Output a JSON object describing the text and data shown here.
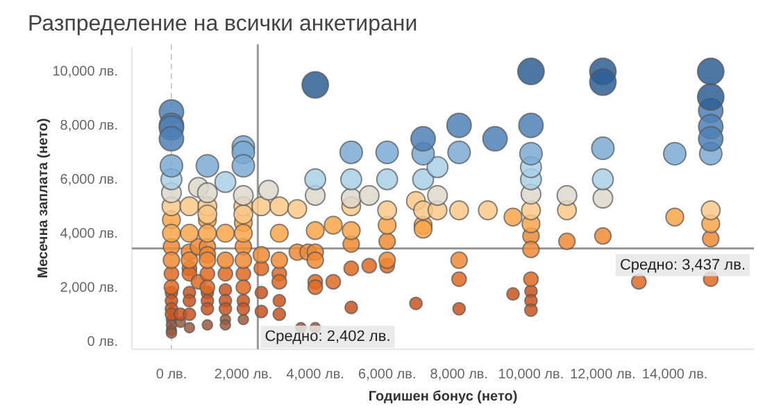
{
  "chart_data": {
    "type": "bubble",
    "title": "Разпределение на всички анкетирани",
    "xlabel": "Годишен бонус (нето)",
    "ylabel": "Месечна заплата (нето)",
    "xlim": [
      -1100,
      16200
    ],
    "ylim": [
      -300,
      10900
    ],
    "xticks": [
      {
        "value": 0,
        "label": "0 лв."
      },
      {
        "value": 2000,
        "label": "2,000 лв."
      },
      {
        "value": 4000,
        "label": "4,000 лв."
      },
      {
        "value": 6000,
        "label": "6,000 лв."
      },
      {
        "value": 8000,
        "label": "8,000 лв."
      },
      {
        "value": 10000,
        "label": "10,000 лв."
      },
      {
        "value": 12000,
        "label": "12,000 лв."
      },
      {
        "value": 14000,
        "label": "14,000 лв."
      }
    ],
    "yticks": [
      {
        "value": 0,
        "label": "0 лв."
      },
      {
        "value": 2000,
        "label": "2,000 лв."
      },
      {
        "value": 4000,
        "label": "4,000 лв."
      },
      {
        "value": 6000,
        "label": "6,000 лв."
      },
      {
        "value": 8000,
        "label": "8,000 лв."
      },
      {
        "value": 10000,
        "label": "10,000 лв."
      }
    ],
    "ref_lines": [
      {
        "axis": "x",
        "value": 0,
        "color": "#cccccc",
        "line_style": "dashed"
      },
      {
        "axis": "x",
        "value": 2402,
        "label": "Средно: 2,402 лв.",
        "color": "#999999",
        "line_style": "solid"
      },
      {
        "axis": "y",
        "value": 3437,
        "label": "Средно: 3,437 лв.",
        "color": "#999999",
        "line_style": "solid"
      }
    ],
    "series": [
      {
        "color": "#9c5a3c",
        "x": [
          0,
          0,
          0,
          0,
          250,
          500,
          1000,
          1500,
          1500,
          2000,
          3600,
          4000
        ],
        "values": [
          800,
          600,
          400,
          300,
          700,
          500,
          600,
          800,
          600,
          800,
          500,
          500
        ],
        "sizes": [
          0.15,
          0.15,
          0.15,
          0.15,
          0.15,
          0.15,
          0.15,
          0.15,
          0.15,
          0.15,
          0.15,
          0.15
        ]
      },
      {
        "color": "#c85520",
        "x": [
          0,
          0,
          0,
          0,
          250,
          500,
          500,
          500,
          1000,
          1000,
          1000,
          1500,
          1500,
          1500,
          2000,
          2000,
          2500,
          2500,
          3000,
          3000,
          5000,
          6800,
          8000,
          9500,
          10000,
          10000,
          10000
        ],
        "values": [
          1800,
          1500,
          1200,
          1000,
          1000,
          1800,
          1500,
          1000,
          1800,
          1500,
          1200,
          1900,
          1500,
          1200,
          1500,
          1200,
          1800,
          1100,
          1500,
          1000,
          1250,
          1400,
          1200,
          1750,
          1850,
          1500,
          1150
        ],
        "sizes": [
          0.22,
          0.22,
          0.22,
          0.22,
          0.22,
          0.22,
          0.22,
          0.22,
          0.22,
          0.22,
          0.22,
          0.22,
          0.22,
          0.22,
          0.22,
          0.22,
          0.22,
          0.22,
          0.22,
          0.22,
          0.22,
          0.22,
          0.22,
          0.22,
          0.22,
          0.22,
          0.22
        ]
      },
      {
        "color": "#e06a24",
        "x": [
          0,
          0,
          500,
          500,
          750,
          1000,
          1000,
          1500,
          2000,
          2000,
          2500,
          3000,
          3000,
          4000,
          4000,
          4500,
          5000,
          5500,
          6000,
          8000,
          10000,
          13000,
          15000
        ],
        "values": [
          2500,
          2000,
          2700,
          2500,
          2200,
          2500,
          2000,
          2500,
          2500,
          2000,
          2700,
          2500,
          2200,
          2200,
          2000,
          2200,
          2700,
          2800,
          2800,
          2300,
          2300,
          2200,
          2300
        ],
        "sizes": [
          0.3,
          0.3,
          0.3,
          0.3,
          0.3,
          0.3,
          0.3,
          0.3,
          0.3,
          0.3,
          0.3,
          0.3,
          0.3,
          0.3,
          0.3,
          0.3,
          0.3,
          0.3,
          0.3,
          0.3,
          0.3,
          0.3,
          0.3
        ]
      },
      {
        "color": "#f08a35",
        "x": [
          0,
          0,
          500,
          500,
          750,
          1000,
          1000,
          1000,
          1500,
          2000,
          2000,
          2500,
          3000,
          3500,
          3800,
          4000,
          4000,
          5000,
          6000,
          6000,
          8000,
          10000,
          10000,
          11000,
          12000,
          15000
        ],
        "values": [
          3500,
          3000,
          3300,
          3000,
          3500,
          3500,
          3200,
          3000,
          3000,
          3500,
          3000,
          3200,
          3000,
          3300,
          3300,
          3300,
          3000,
          3600,
          3700,
          3000,
          3000,
          3900,
          3400,
          3700,
          3900,
          3800
        ],
        "sizes": [
          0.38,
          0.38,
          0.38,
          0.38,
          0.38,
          0.38,
          0.38,
          0.38,
          0.38,
          0.38,
          0.38,
          0.38,
          0.38,
          0.38,
          0.38,
          0.38,
          0.38,
          0.38,
          0.38,
          0.38,
          0.38,
          0.38,
          0.38,
          0.38,
          0.38,
          0.38
        ]
      },
      {
        "color": "#f9a64a",
        "x": [
          0,
          0,
          500,
          1000,
          1000,
          1500,
          2000,
          2000,
          3000,
          4000,
          4500,
          5000,
          6000,
          7000,
          7000,
          9500,
          10000,
          14000,
          15000
        ],
        "values": [
          4500,
          4000,
          4000,
          4500,
          4000,
          4000,
          4400,
          4000,
          4000,
          4100,
          4300,
          4100,
          4300,
          4300,
          4150,
          4600,
          4350,
          4600,
          4350
        ],
        "sizes": [
          0.45,
          0.45,
          0.45,
          0.45,
          0.45,
          0.45,
          0.45,
          0.45,
          0.45,
          0.45,
          0.45,
          0.45,
          0.45,
          0.45,
          0.45,
          0.45,
          0.45,
          0.45,
          0.45
        ]
      },
      {
        "color": "#fcc887",
        "x": [
          0,
          500,
          1000,
          1000,
          2000,
          2000,
          2500,
          3000,
          3500,
          5000,
          6000,
          6800,
          7000,
          7400,
          8000,
          8800,
          10000,
          11000,
          15000
        ],
        "values": [
          5000,
          5000,
          5000,
          4700,
          5000,
          4700,
          5000,
          5000,
          4900,
          5000,
          4850,
          5200,
          4850,
          4850,
          4850,
          4850,
          4850,
          4850,
          4850
        ],
        "sizes": [
          0.5,
          0.5,
          0.5,
          0.5,
          0.5,
          0.5,
          0.5,
          0.5,
          0.5,
          0.5,
          0.5,
          0.5,
          0.5,
          0.5,
          0.5,
          0.5,
          0.5,
          0.5,
          0.5
        ]
      },
      {
        "color": "#ddd8cc",
        "x": [
          0,
          750,
          1000,
          2000,
          2700,
          4000,
          5000,
          5500,
          7400,
          10000,
          11000,
          12000
        ],
        "values": [
          5500,
          5700,
          5500,
          5400,
          5600,
          5400,
          5300,
          5400,
          5400,
          5450,
          5400,
          5300
        ],
        "sizes": [
          0.55,
          0.55,
          0.55,
          0.55,
          0.55,
          0.55,
          0.55,
          0.55,
          0.55,
          0.55,
          0.55,
          0.55
        ]
      },
      {
        "color": "#a9cfe6",
        "x": [
          0,
          1500,
          4000,
          5000,
          6000,
          7000,
          10000,
          12000,
          7400,
          10000
        ],
        "values": [
          6000,
          5900,
          6000,
          6000,
          6000,
          6000,
          6000,
          6000,
          6450,
          6450
        ],
        "sizes": [
          0.62,
          0.62,
          0.62,
          0.62,
          0.62,
          0.62,
          0.62,
          0.62,
          0.62,
          0.62
        ]
      },
      {
        "color": "#7aaad3",
        "x": [
          0,
          1000,
          2000,
          2000,
          2000,
          5000,
          6000,
          7000,
          8000,
          10000,
          12000,
          14000,
          15000
        ],
        "values": [
          6500,
          6500,
          7200,
          7000,
          6500,
          7000,
          7000,
          6950,
          7000,
          6950,
          7150,
          6950,
          6950
        ],
        "sizes": [
          0.72,
          0.72,
          0.72,
          0.72,
          0.72,
          0.72,
          0.72,
          0.72,
          0.72,
          0.72,
          0.72,
          0.72,
          0.72
        ]
      },
      {
        "color": "#4f80b5",
        "x": [
          0,
          0,
          0,
          0,
          7000,
          8000,
          9000,
          10000,
          15000,
          15000,
          15000
        ],
        "values": [
          8500,
          8000,
          7900,
          7500,
          7500,
          8000,
          7500,
          8000,
          8550,
          7950,
          7500
        ],
        "sizes": [
          0.85,
          0.85,
          0.85,
          0.85,
          0.85,
          0.85,
          0.85,
          0.85,
          0.85,
          0.85,
          0.85
        ]
      },
      {
        "color": "#2e5e93",
        "x": [
          4000,
          10000,
          12000,
          12000,
          15000,
          15000
        ],
        "values": [
          9500,
          10000,
          10000,
          9600,
          10000,
          9050
        ],
        "sizes": [
          1,
          1,
          1,
          1,
          1,
          1
        ]
      }
    ]
  }
}
